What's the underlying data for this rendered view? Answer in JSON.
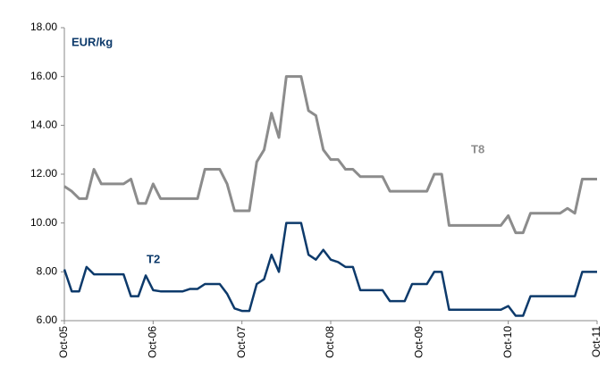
{
  "chart_data": {
    "type": "line",
    "annotations": [
      "EUR/kg",
      "T8",
      "T2"
    ],
    "categories": [
      "Oct-05",
      null,
      null,
      null,
      null,
      null,
      null,
      null,
      null,
      null,
      null,
      null,
      "Oct-06",
      null,
      null,
      null,
      null,
      null,
      null,
      null,
      null,
      null,
      null,
      null,
      "Oct-07",
      null,
      null,
      null,
      null,
      null,
      null,
      null,
      null,
      null,
      null,
      null,
      "Oct-08",
      null,
      null,
      null,
      null,
      null,
      null,
      null,
      null,
      null,
      null,
      null,
      "Oct-09",
      null,
      null,
      null,
      null,
      null,
      null,
      null,
      null,
      null,
      null,
      null,
      "Oct-10",
      null,
      null,
      null,
      null,
      null,
      null,
      null,
      null,
      null,
      null,
      null,
      "Oct-11"
    ],
    "series": [
      {
        "name": "T8",
        "color": "#8c8c8c",
        "values": [
          11.5,
          11.3,
          11.0,
          11.0,
          12.2,
          11.6,
          11.6,
          11.6,
          11.6,
          11.8,
          10.8,
          10.8,
          11.6,
          11,
          11,
          11,
          11,
          11,
          11,
          12.2,
          12.2,
          12.2,
          11.6,
          10.5,
          10.5,
          10.5,
          12.5,
          13.0,
          14.5,
          13.5,
          16,
          16,
          16,
          14.6,
          14.4,
          13.0,
          12.6,
          12.6,
          12.2,
          12.2,
          11.9,
          11.9,
          11.9,
          11.9,
          11.3,
          11.3,
          11.3,
          11.3,
          11.3,
          11.3,
          12.0,
          12.0,
          9.9,
          9.9,
          9.9,
          9.9,
          9.9,
          9.9,
          9.9,
          9.9,
          10.3,
          9.6,
          9.6,
          10.4,
          10.4,
          10.4,
          10.4,
          10.4,
          10.6,
          10.4,
          11.8,
          11.8,
          11.8
        ]
      },
      {
        "name": "T2",
        "color": "#0d3a6b",
        "values": [
          8.1,
          7.2,
          7.2,
          8.2,
          7.9,
          7.9,
          7.9,
          7.9,
          7.9,
          7.0,
          7.0,
          7.85,
          7.25,
          7.2,
          7.2,
          7.2,
          7.2,
          7.3,
          7.3,
          7.5,
          7.5,
          7.5,
          7.1,
          6.5,
          6.4,
          6.4,
          7.5,
          7.7,
          8.7,
          8.0,
          10,
          10,
          10,
          8.7,
          8.5,
          8.9,
          8.5,
          8.4,
          8.2,
          8.2,
          7.25,
          7.25,
          7.25,
          7.25,
          6.8,
          6.8,
          6.8,
          7.5,
          7.5,
          7.5,
          8.0,
          8.0,
          6.45,
          6.45,
          6.45,
          6.45,
          6.45,
          6.45,
          6.45,
          6.45,
          6.6,
          6.2,
          6.2,
          7,
          7,
          7,
          7,
          7,
          7,
          7,
          8,
          8,
          8
        ]
      }
    ],
    "ylim": [
      6,
      18
    ],
    "yticks": [
      {
        "value": 6,
        "label": "6.00"
      },
      {
        "value": 8,
        "label": "8.00"
      },
      {
        "value": 10,
        "label": "10.00"
      },
      {
        "value": 12,
        "label": "12.00"
      },
      {
        "value": 14,
        "label": "14.00"
      },
      {
        "value": 16,
        "label": "16.00"
      },
      {
        "value": 18,
        "label": "18.00"
      }
    ],
    "legend": false,
    "grid": false
  }
}
